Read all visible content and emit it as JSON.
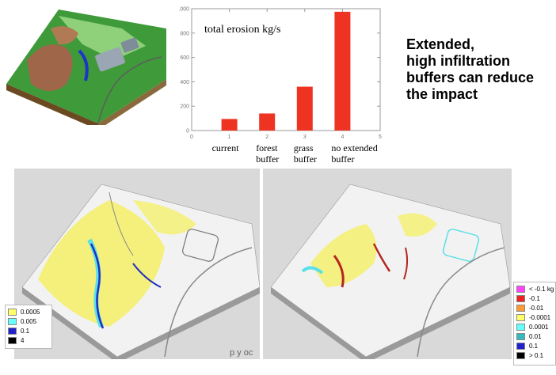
{
  "chart_data": {
    "type": "bar",
    "title": "total erosion kg/s",
    "xlabel": "",
    "ylabel": "",
    "x": [
      1,
      2,
      3,
      4
    ],
    "values": [
      95,
      140,
      360,
      975
    ],
    "xlim": [
      0,
      5
    ],
    "ylim": [
      0,
      1000
    ],
    "x_ticks": [
      "0",
      "1",
      "2",
      "3",
      "4",
      "5"
    ],
    "y_ticks": [
      "0",
      "200",
      "400",
      "600",
      "800",
      "1000"
    ],
    "categories": [
      "current",
      "forest\nbuffer",
      "grass\nbuffer",
      "no extended\nbuffer"
    ],
    "bar_color": "#ee3322",
    "grid": false
  },
  "headline": "Extended,\nhigh infiltration\nbuffers can reduce\nthe impact",
  "legend_left": [
    {
      "label": "0.0005",
      "color": "#ffff66"
    },
    {
      "label": "0.005",
      "color": "#66ffff"
    },
    {
      "label": "0.1",
      "color": "#2222cc"
    },
    {
      "label": "4",
      "color": "#000000"
    }
  ],
  "legend_right": [
    {
      "label": "< -0.1 kg",
      "color": "#ff44ff"
    },
    {
      "label": "-0.1",
      "color": "#ee2222"
    },
    {
      "label": "-0.01",
      "color": "#ff9933"
    },
    {
      "label": "-0.0001",
      "color": "#ffff66"
    },
    {
      "label": "0.0001",
      "color": "#66ffff"
    },
    {
      "label": "0.01",
      "color": "#33bbbb"
    },
    {
      "label": "0.1",
      "color": "#2222cc"
    },
    {
      "label": "> 0.1",
      "color": "#000000"
    }
  ],
  "clipped_text": "p    y   oc"
}
